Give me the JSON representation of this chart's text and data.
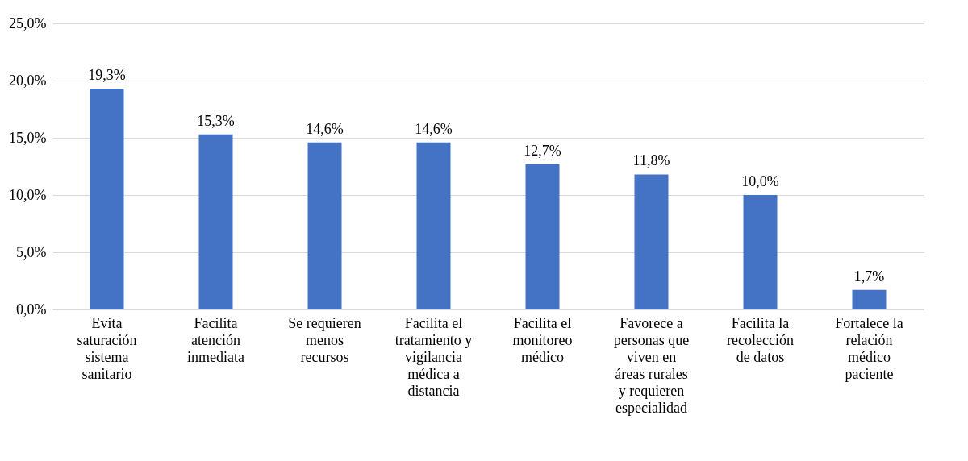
{
  "chart_data": {
    "type": "bar",
    "categories": [
      "Evita saturación sistema sanitario",
      "Facilita atención inmediata",
      "Se requieren menos recursos",
      "Facilita el tratamiento y vigilancia médica a distancia",
      "Facilita el monitoreo médico",
      "Favorece a personas que viven en áreas rurales y requieren especialidad",
      "Facilita la recolección de datos",
      "Fortalece la relación médico paciente"
    ],
    "values": [
      19.3,
      15.3,
      14.6,
      14.6,
      12.7,
      11.8,
      10.0,
      1.7
    ],
    "color": "#4472c4",
    "ylim": [
      0,
      25
    ],
    "yticks": [
      {
        "value": 0,
        "label": "0,0%"
      },
      {
        "value": 5,
        "label": "5,0%"
      },
      {
        "value": 10,
        "label": "10,0%"
      },
      {
        "value": 15,
        "label": "15,0%"
      },
      {
        "value": 20,
        "label": "20,0%"
      },
      {
        "value": 25,
        "label": "25,0%"
      }
    ],
    "value_labels": [
      "19,3%",
      "15,3%",
      "14,6%",
      "14,6%",
      "12,7%",
      "11,8%",
      "10,0%",
      "1,7%"
    ],
    "grid": "y"
  }
}
